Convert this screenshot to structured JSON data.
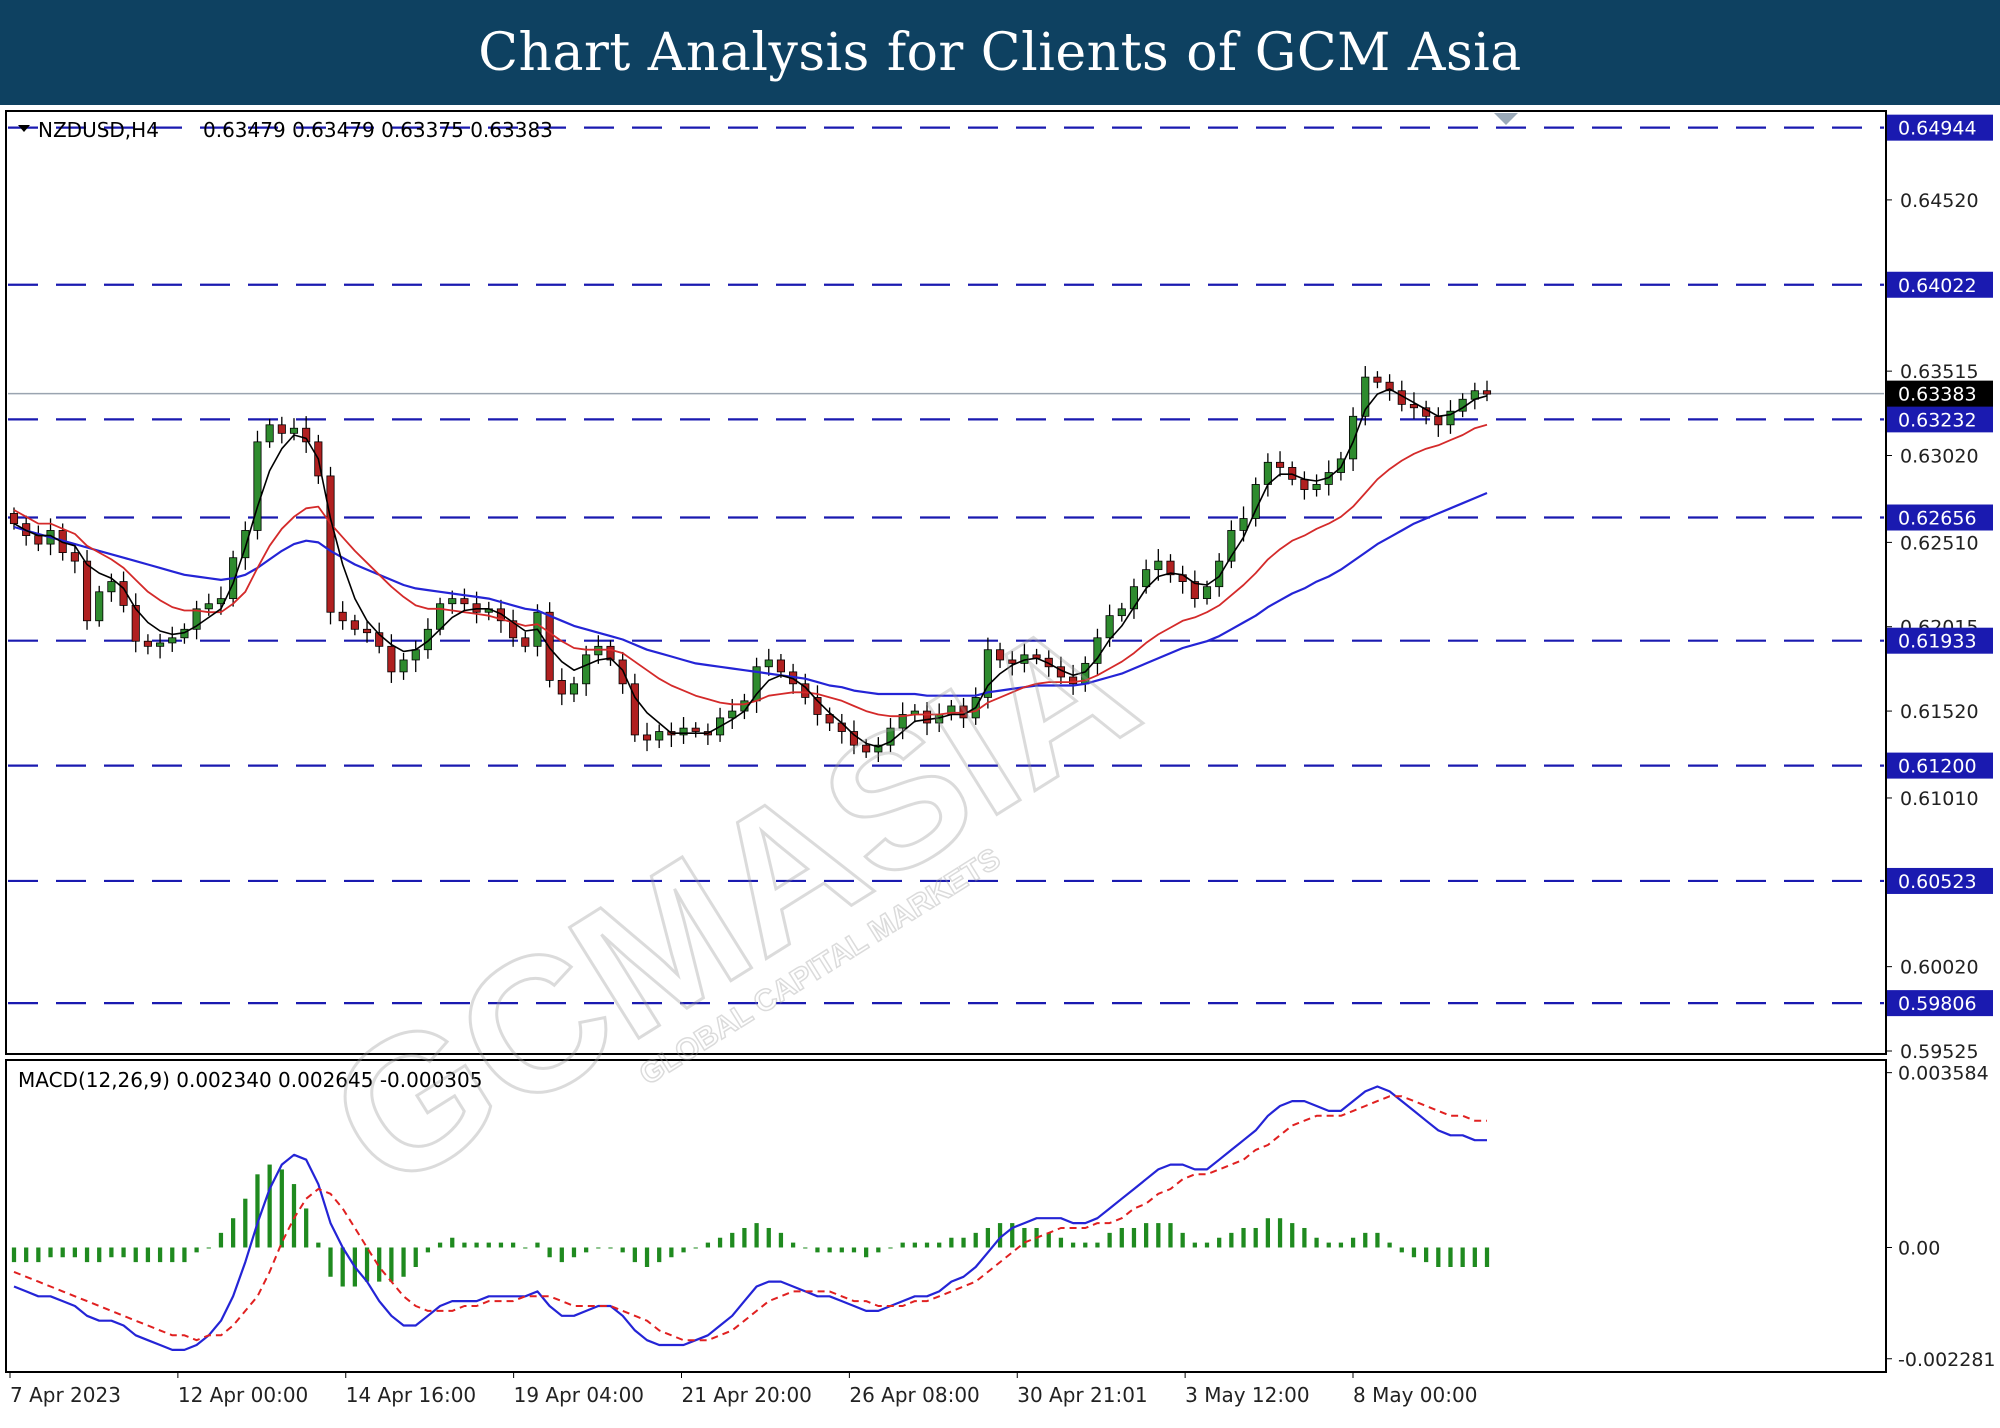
{
  "banner": {
    "title": "Chart Analysis for Clients of GCM Asia"
  },
  "watermark": {
    "brand": "GCMASIA",
    "tagline": "GLOBAL CAPITAL MARKETS"
  },
  "chart_data": {
    "type": "candlestick",
    "symbol": "NZDUSD,H4",
    "ohlc_header": "0.63479 0.63479 0.63375 0.63383",
    "price_axis": {
      "range": [
        0.59525,
        0.6503
      ],
      "ticks": [
        "0.64520",
        "0.63515",
        "0.63020",
        "0.62510",
        "0.62015",
        "0.61520",
        "0.61010",
        "0.60020",
        "0.59525"
      ]
    },
    "current_price": {
      "value": 0.63383,
      "label": "0.63383"
    },
    "levels": [
      {
        "value": 0.64944,
        "label": "0.64944"
      },
      {
        "value": 0.64022,
        "label": "0.64022"
      },
      {
        "value": 0.63232,
        "label": "0.63232"
      },
      {
        "value": 0.62656,
        "label": "0.62656"
      },
      {
        "value": 0.61933,
        "label": "0.61933"
      },
      {
        "value": 0.612,
        "label": "0.61200"
      },
      {
        "value": 0.60523,
        "label": "0.60523"
      },
      {
        "value": 0.59806,
        "label": "0.59806"
      }
    ],
    "moving_averages": [
      {
        "color": "#000000"
      },
      {
        "color": "#d42a2a"
      },
      {
        "color": "#2424d6"
      }
    ],
    "x_labels": [
      "7 Apr 2023",
      "12 Apr 00:00",
      "14 Apr 16:00",
      "19 Apr 04:00",
      "21 Apr 20:00",
      "26 Apr 08:00",
      "30 Apr 21:01",
      "3 May 12:00",
      "8 May 00:00"
    ],
    "close_series": [
      0.6262,
      0.6255,
      0.625,
      0.6258,
      0.6245,
      0.624,
      0.6205,
      0.6222,
      0.6228,
      0.6214,
      0.6193,
      0.619,
      0.6192,
      0.6195,
      0.62,
      0.6212,
      0.6215,
      0.6218,
      0.6242,
      0.6258,
      0.631,
      0.632,
      0.6315,
      0.6318,
      0.631,
      0.629,
      0.621,
      0.6205,
      0.62,
      0.6198,
      0.619,
      0.6175,
      0.6182,
      0.6188,
      0.62,
      0.6215,
      0.6218,
      0.6215,
      0.621,
      0.6212,
      0.6205,
      0.6195,
      0.619,
      0.621,
      0.617,
      0.6162,
      0.6168,
      0.6185,
      0.619,
      0.6182,
      0.6168,
      0.6138,
      0.6135,
      0.614,
      0.6138,
      0.6142,
      0.614,
      0.6138,
      0.6148,
      0.6152,
      0.6158,
      0.6178,
      0.6182,
      0.6175,
      0.6168,
      0.616,
      0.615,
      0.6145,
      0.614,
      0.6132,
      0.6128,
      0.6132,
      0.6142,
      0.615,
      0.6152,
      0.6145,
      0.615,
      0.6155,
      0.6148,
      0.616,
      0.6188,
      0.6182,
      0.618,
      0.6185,
      0.6183,
      0.6178,
      0.6172,
      0.6168,
      0.618,
      0.6195,
      0.6208,
      0.6212,
      0.6225,
      0.6235,
      0.624,
      0.6232,
      0.6228,
      0.6218,
      0.6225,
      0.624,
      0.6258,
      0.6265,
      0.6285,
      0.6298,
      0.6295,
      0.6288,
      0.6282,
      0.6285,
      0.6292,
      0.63,
      0.6325,
      0.6348,
      0.6345,
      0.634,
      0.6332,
      0.633,
      0.6325,
      0.632,
      0.6328,
      0.6335,
      0.634,
      0.6338
    ],
    "ma_black": [
      0.6262,
      0.6258,
      0.6255,
      0.6255,
      0.6251,
      0.6249,
      0.6238,
      0.6233,
      0.623,
      0.6224,
      0.6212,
      0.6204,
      0.6199,
      0.6197,
      0.6198,
      0.6202,
      0.6207,
      0.6212,
      0.6227,
      0.6248,
      0.6272,
      0.6293,
      0.6306,
      0.6314,
      0.6312,
      0.63,
      0.6265,
      0.6238,
      0.6218,
      0.6205,
      0.6197,
      0.6191,
      0.6187,
      0.6188,
      0.6193,
      0.62,
      0.6207,
      0.6211,
      0.6212,
      0.6212,
      0.6209,
      0.6204,
      0.6199,
      0.62,
      0.6189,
      0.6181,
      0.6176,
      0.6179,
      0.6182,
      0.6183,
      0.6176,
      0.616,
      0.6151,
      0.6145,
      0.6139,
      0.6139,
      0.6139,
      0.6139,
      0.6143,
      0.6147,
      0.6152,
      0.6162,
      0.617,
      0.6173,
      0.6171,
      0.6166,
      0.6158,
      0.6151,
      0.6145,
      0.6138,
      0.6133,
      0.6131,
      0.6134,
      0.614,
      0.6146,
      0.6147,
      0.6148,
      0.615,
      0.615,
      0.6154,
      0.6167,
      0.6174,
      0.6179,
      0.6182,
      0.6183,
      0.618,
      0.6176,
      0.6173,
      0.6175,
      0.6183,
      0.6194,
      0.6202,
      0.6213,
      0.6224,
      0.6231,
      0.6233,
      0.6232,
      0.6227,
      0.6226,
      0.6231,
      0.6243,
      0.6254,
      0.627,
      0.6285,
      0.6291,
      0.6291,
      0.6288,
      0.6287,
      0.6289,
      0.6295,
      0.631,
      0.6329,
      0.6338,
      0.6341,
      0.6337,
      0.6333,
      0.6329,
      0.6325,
      0.6326,
      0.633,
      0.6335,
      0.6337
    ],
    "ma_red": [
      0.627,
      0.6266,
      0.6262,
      0.6262,
      0.6259,
      0.6256,
      0.6249,
      0.6245,
      0.6241,
      0.6236,
      0.6229,
      0.6222,
      0.6217,
      0.6213,
      0.6211,
      0.6211,
      0.621,
      0.621,
      0.6215,
      0.6222,
      0.6236,
      0.6249,
      0.6259,
      0.6266,
      0.6271,
      0.6272,
      0.6262,
      0.6254,
      0.6246,
      0.6239,
      0.6232,
      0.6225,
      0.6219,
      0.6214,
      0.6212,
      0.6212,
      0.6211,
      0.621,
      0.6209,
      0.6208,
      0.6206,
      0.6204,
      0.6202,
      0.6203,
      0.6198,
      0.6193,
      0.6189,
      0.6188,
      0.6188,
      0.6188,
      0.6186,
      0.6181,
      0.6176,
      0.6171,
      0.6167,
      0.6164,
      0.6161,
      0.6159,
      0.6157,
      0.6156,
      0.6156,
      0.6158,
      0.6161,
      0.6162,
      0.6163,
      0.6163,
      0.6162,
      0.616,
      0.6158,
      0.6155,
      0.6152,
      0.615,
      0.6149,
      0.6149,
      0.615,
      0.615,
      0.615,
      0.6151,
      0.6151,
      0.6152,
      0.6157,
      0.616,
      0.6163,
      0.6166,
      0.6168,
      0.6169,
      0.6169,
      0.6169,
      0.617,
      0.6173,
      0.6177,
      0.6181,
      0.6186,
      0.6192,
      0.6197,
      0.6201,
      0.6205,
      0.6207,
      0.621,
      0.6214,
      0.622,
      0.6226,
      0.6233,
      0.6241,
      0.6247,
      0.6252,
      0.6255,
      0.6259,
      0.6262,
      0.6266,
      0.6272,
      0.628,
      0.6288,
      0.6294,
      0.6299,
      0.6303,
      0.6306,
      0.6308,
      0.6311,
      0.6314,
      0.6318,
      0.632
    ],
    "ma_blue": [
      0.626,
      0.6258,
      0.6256,
      0.6254,
      0.6252,
      0.625,
      0.6248,
      0.6246,
      0.6244,
      0.6242,
      0.624,
      0.6238,
      0.6236,
      0.6234,
      0.6232,
      0.6231,
      0.623,
      0.6229,
      0.623,
      0.6232,
      0.6236,
      0.6241,
      0.6246,
      0.625,
      0.6252,
      0.6251,
      0.6246,
      0.6242,
      0.6238,
      0.6235,
      0.6232,
      0.6229,
      0.6226,
      0.6224,
      0.6223,
      0.6222,
      0.6221,
      0.622,
      0.6219,
      0.6218,
      0.6216,
      0.6214,
      0.6212,
      0.6211,
      0.6208,
      0.6205,
      0.6202,
      0.62,
      0.6198,
      0.6196,
      0.6194,
      0.6191,
      0.6188,
      0.6186,
      0.6184,
      0.6182,
      0.618,
      0.6179,
      0.6178,
      0.6177,
      0.6176,
      0.6175,
      0.6174,
      0.6173,
      0.6172,
      0.6171,
      0.6169,
      0.6167,
      0.6166,
      0.6164,
      0.6163,
      0.6162,
      0.6162,
      0.6162,
      0.6162,
      0.6161,
      0.6161,
      0.6161,
      0.6161,
      0.6161,
      0.6163,
      0.6164,
      0.6165,
      0.6166,
      0.6167,
      0.6167,
      0.6167,
      0.6167,
      0.6168,
      0.617,
      0.6172,
      0.6174,
      0.6177,
      0.618,
      0.6183,
      0.6186,
      0.6189,
      0.6191,
      0.6193,
      0.6196,
      0.62,
      0.6204,
      0.6208,
      0.6213,
      0.6217,
      0.6221,
      0.6224,
      0.6228,
      0.6231,
      0.6235,
      0.624,
      0.6245,
      0.625,
      0.6254,
      0.6258,
      0.6262,
      0.6265,
      0.6268,
      0.6271,
      0.6274,
      0.6277,
      0.628
    ],
    "macd": {
      "label": "MACD(12,26,9) 0.002340 0.002645 -0.000305",
      "range": [
        -0.00245,
        0.0037
      ],
      "ticks": [
        "0.003584",
        "0.00",
        "-0.002281"
      ],
      "macd_line": [
        -0.0008,
        -0.0009,
        -0.001,
        -0.001,
        -0.0011,
        -0.0012,
        -0.0014,
        -0.0015,
        -0.0015,
        -0.0016,
        -0.0018,
        -0.0019,
        -0.002,
        -0.0021,
        -0.0021,
        -0.002,
        -0.0018,
        -0.0015,
        -0.001,
        -0.0003,
        0.0005,
        0.0012,
        0.0017,
        0.0019,
        0.0018,
        0.0013,
        0.0005,
        -0.0,
        -0.0004,
        -0.0007,
        -0.0011,
        -0.0014,
        -0.0016,
        -0.0016,
        -0.0014,
        -0.0012,
        -0.0011,
        -0.0011,
        -0.0011,
        -0.001,
        -0.001,
        -0.001,
        -0.001,
        -0.0009,
        -0.0012,
        -0.0014,
        -0.0014,
        -0.0013,
        -0.0012,
        -0.0012,
        -0.0014,
        -0.0017,
        -0.0019,
        -0.002,
        -0.002,
        -0.002,
        -0.0019,
        -0.0018,
        -0.0016,
        -0.0014,
        -0.0011,
        -0.0008,
        -0.0007,
        -0.0007,
        -0.0008,
        -0.0009,
        -0.001,
        -0.001,
        -0.0011,
        -0.0012,
        -0.0013,
        -0.0013,
        -0.0012,
        -0.0011,
        -0.001,
        -0.001,
        -0.0009,
        -0.0007,
        -0.0006,
        -0.0004,
        -0.0001,
        0.0002,
        0.0004,
        0.0005,
        0.0006,
        0.0006,
        0.0006,
        0.0005,
        0.0005,
        0.0006,
        0.0008,
        0.001,
        0.0012,
        0.0014,
        0.0016,
        0.0017,
        0.0017,
        0.0016,
        0.0016,
        0.0018,
        0.002,
        0.0022,
        0.0024,
        0.0027,
        0.0029,
        0.003,
        0.003,
        0.0029,
        0.0028,
        0.0028,
        0.003,
        0.0032,
        0.0033,
        0.0032,
        0.003,
        0.0028,
        0.0026,
        0.0024,
        0.0023,
        0.0023,
        0.0022,
        0.0022
      ],
      "signal_line": [
        -0.0005,
        -0.0006,
        -0.0007,
        -0.0008,
        -0.0009,
        -0.001,
        -0.0011,
        -0.0012,
        -0.0013,
        -0.0014,
        -0.0015,
        -0.0016,
        -0.0017,
        -0.0018,
        -0.0018,
        -0.0019,
        -0.0018,
        -0.0018,
        -0.0016,
        -0.0013,
        -0.001,
        -0.0005,
        0.0001,
        0.0006,
        0.001,
        0.0012,
        0.0011,
        0.0008,
        0.0004,
        0.0,
        -0.0004,
        -0.0007,
        -0.001,
        -0.0012,
        -0.0013,
        -0.0013,
        -0.0013,
        -0.0012,
        -0.0012,
        -0.0011,
        -0.0011,
        -0.0011,
        -0.001,
        -0.001,
        -0.001,
        -0.0011,
        -0.0012,
        -0.0012,
        -0.0012,
        -0.0012,
        -0.0013,
        -0.0014,
        -0.0015,
        -0.0017,
        -0.0018,
        -0.0019,
        -0.0019,
        -0.0019,
        -0.0018,
        -0.0017,
        -0.0015,
        -0.0013,
        -0.0011,
        -0.001,
        -0.0009,
        -0.0009,
        -0.0009,
        -0.0009,
        -0.001,
        -0.0011,
        -0.0011,
        -0.0012,
        -0.0012,
        -0.0012,
        -0.0011,
        -0.0011,
        -0.001,
        -0.0009,
        -0.0008,
        -0.0007,
        -0.0005,
        -0.0003,
        -0.0001,
        0.0001,
        0.0002,
        0.0003,
        0.0004,
        0.0004,
        0.0004,
        0.0005,
        0.0005,
        0.0006,
        0.0008,
        0.0009,
        0.0011,
        0.0012,
        0.0014,
        0.0015,
        0.0015,
        0.0016,
        0.0017,
        0.0018,
        0.002,
        0.0021,
        0.0023,
        0.0025,
        0.0026,
        0.0027,
        0.0027,
        0.0027,
        0.0028,
        0.0029,
        0.003,
        0.0031,
        0.0031,
        0.003,
        0.0029,
        0.0028,
        0.0027,
        0.0027,
        0.0026,
        0.0026
      ]
    },
    "colors": {
      "bull_body": "#2e8b2e",
      "bear_body": "#b02020",
      "level_line": "#1a1ab0",
      "level_label_bg": "#1a1ab0",
      "current_label_bg": "#000000",
      "histogram": "#1f8a1f",
      "grid_axis_text": "#222222"
    }
  }
}
